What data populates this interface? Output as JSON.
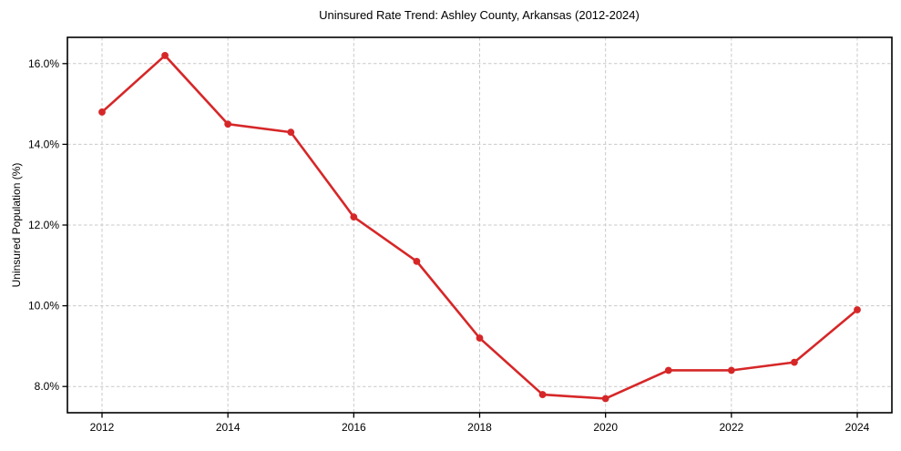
{
  "chart_data": {
    "type": "line",
    "title": "Uninsured Rate Trend: Ashley County, Arkansas (2012-2024)",
    "xlabel": "",
    "ylabel": "Uninsured Population (%)",
    "x": [
      2012,
      2013,
      2014,
      2015,
      2016,
      2017,
      2018,
      2019,
      2020,
      2021,
      2022,
      2023,
      2024
    ],
    "values": [
      14.8,
      16.2,
      14.5,
      14.3,
      12.2,
      11.1,
      9.2,
      7.8,
      7.7,
      8.4,
      8.4,
      8.6,
      9.9
    ],
    "x_tick_values": [
      2012,
      2014,
      2016,
      2018,
      2020,
      2022,
      2024
    ],
    "x_tick_labels": [
      "2012",
      "2014",
      "2016",
      "2018",
      "2020",
      "2022",
      "2024"
    ],
    "y_tick_values": [
      8,
      10,
      12,
      14,
      16
    ],
    "y_tick_labels": [
      "8.0%",
      "10.0%",
      "12.0%",
      "14.0%",
      "16.0%"
    ],
    "xlim": [
      2011.45,
      2024.55
    ],
    "ylim": [
      7.35,
      16.65
    ],
    "grid": true,
    "legend": "none",
    "line_color": "#d62728",
    "marker_color": "#d62728",
    "grid_color": "#c9c9c9",
    "spine_color": "#000000",
    "text_color": "#000000",
    "background": "#ffffff"
  }
}
